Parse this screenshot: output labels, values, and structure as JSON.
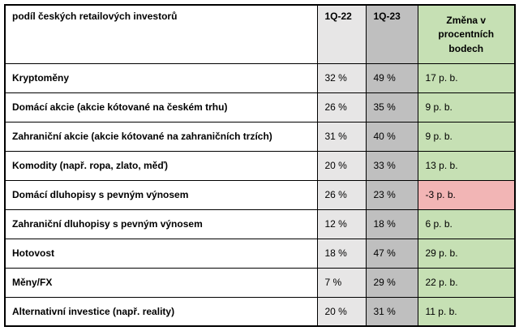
{
  "colors": {
    "lightgray": "#e7e6e6",
    "darkgray": "#bfbfbf",
    "green": "#c6e0b4",
    "red": "#f2b5b5"
  },
  "table": {
    "header": {
      "label": "podíl českých retailových investorů",
      "q122": "1Q-22",
      "q123": "1Q-23",
      "change": "Změna v procentních bodech"
    },
    "rows": [
      {
        "label": "Kryptoměny",
        "q122": "32 %",
        "q123": "49 %",
        "change": "17 p. b."
      },
      {
        "label": "Domácí akcie (akcie kótované na českém trhu)",
        "q122": "26 %",
        "q123": "35 %",
        "change": "9 p. b."
      },
      {
        "label": "Zahraniční akcie (akcie kótované na zahraničních trzích)",
        "q122": "31 %",
        "q123": "40 %",
        "change": "9 p. b."
      },
      {
        "label": "Komodity (např. ropa, zlato, měď)",
        "q122": "20 %",
        "q123": "33 %",
        "change": "13 p. b."
      },
      {
        "label": "Domácí dluhopisy s pevným výnosem",
        "q122": "26 %",
        "q123": "23 %",
        "change": "-3 p. b."
      },
      {
        "label": "Zahraniční dluhopisy s pevným výnosem",
        "q122": "12 %",
        "q123": "18 %",
        "change": "6 p. b."
      },
      {
        "label": "Hotovost",
        "q122": "18 %",
        "q123": "47 %",
        "change": "29 p. b."
      },
      {
        "label": "Měny/FX",
        "q122": "7 %",
        "q123": "29 %",
        "change": "22 p. b."
      },
      {
        "label": "Alternativní investice (např. reality)",
        "q122": "20 %",
        "q123": "31 %",
        "change": "11 p. b."
      }
    ]
  },
  "chart_data": {
    "type": "table",
    "title": "podíl českých retailových investorů",
    "columns": [
      "podíl českých retailových investorů",
      "1Q-22",
      "1Q-23",
      "Změna v procentních bodech"
    ],
    "units": {
      "q122": "%",
      "q123": "%",
      "change": "p. b."
    },
    "rows": [
      {
        "category": "Kryptoměny",
        "q122": 32,
        "q123": 49,
        "change": 17
      },
      {
        "category": "Domácí akcie (akcie kótované na českém trhu)",
        "q122": 26,
        "q123": 35,
        "change": 9
      },
      {
        "category": "Zahraniční akcie (akcie kótované na zahraničních trzích)",
        "q122": 31,
        "q123": 40,
        "change": 9
      },
      {
        "category": "Komodity (např. ropa, zlato, měď)",
        "q122": 20,
        "q123": 33,
        "change": 13
      },
      {
        "category": "Domácí dluhopisy s pevným výnosem",
        "q122": 26,
        "q123": 23,
        "change": -3
      },
      {
        "category": "Zahraniční dluhopisy s pevným výnosem",
        "q122": 12,
        "q123": 18,
        "change": 6
      },
      {
        "category": "Hotovost",
        "q122": 18,
        "q123": 47,
        "change": 29
      },
      {
        "category": "Měny/FX",
        "q122": 7,
        "q123": 29,
        "change": 22
      },
      {
        "category": "Alternativní investice (např. reality)",
        "q122": 20,
        "q123": 31,
        "change": 11
      }
    ],
    "legend": "none",
    "notes": "Negative change highlighted red, positive changes highlighted green; 1Q-22 column light gray, 1Q-23 column dark gray"
  }
}
